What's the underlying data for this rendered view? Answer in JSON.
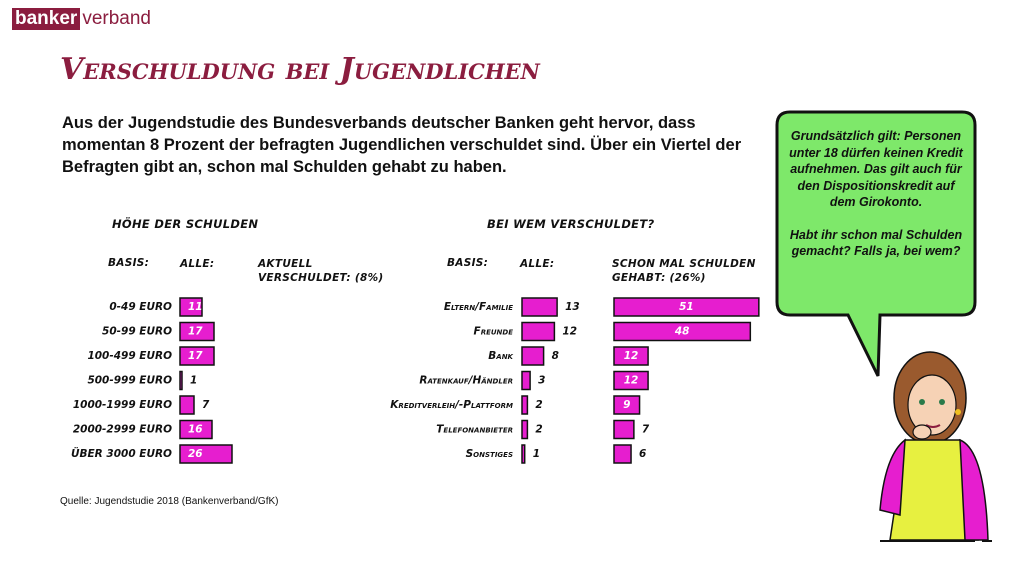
{
  "logo": {
    "part1": "banker",
    "part2": "verband"
  },
  "title": "Verschuldung bei Jugendlichen",
  "intro": "Aus der Jugendstudie des Bundesverbands deutscher Banken geht hervor, dass momentan 8 Prozent der befragten Jugendlichen verschuldet sind. Über ein Viertel der Befragten gibt an, schon mal Schulden gehabt zu haben.",
  "bubble": {
    "text1": "Grundsätzlich gilt: Personen unter 18 dürfen keinen Kredit aufnehmen. Das gilt auch für den Dispositionskredit auf dem Girokonto.",
    "text2": "Habt ihr schon mal Schulden gemacht? Falls ja, bei wem?"
  },
  "source": "Quelle: Jugendstudie 2018 (Bankenverband/GfK)",
  "chart_data": [
    {
      "type": "bar",
      "orientation": "horizontal",
      "title": "HÖHE DER SCHULDEN",
      "basis_label": "BASIS:",
      "note": "AKTUELL VERSCHULDET: (8%)",
      "categories": [
        "0-49 EURO",
        "50-99 EURO",
        "100-499 EURO",
        "500-999 EURO",
        "1000-1999 EURO",
        "2000-2999 EURO",
        "ÜBER 3000 EURO"
      ],
      "series": [
        {
          "name": "ALLE:",
          "color": "#e61ecf",
          "values": [
            11,
            17,
            17,
            1,
            7,
            16,
            26
          ]
        }
      ]
    },
    {
      "type": "bar",
      "orientation": "horizontal",
      "title": "BEI WEM VERSCHULDET?",
      "basis_label": "BASIS:",
      "categories": [
        "Eltern/Familie",
        "Freunde",
        "Bank",
        "Ratenkauf/Händler",
        "Kreditverleih/-Plattform",
        "Telefonanbieter",
        "Sonstiges"
      ],
      "series": [
        {
          "name": "ALLE:",
          "color": "#e61ecf",
          "values": [
            13,
            12,
            8,
            3,
            2,
            2,
            1
          ]
        },
        {
          "name": "SCHON MAL SCHULDEN GEHABT: (26%)",
          "color": "#e61ecf",
          "values": [
            51,
            48,
            12,
            12,
            9,
            7,
            6
          ]
        }
      ]
    }
  ]
}
